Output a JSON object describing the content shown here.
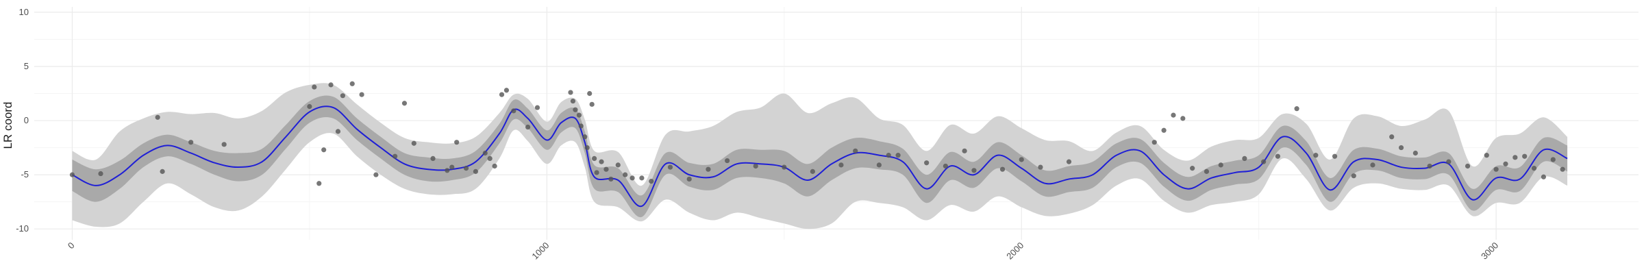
{
  "chart_data": {
    "type": "scatter",
    "title": "",
    "xlabel": "",
    "ylabel": "LR coord",
    "xlim": [
      -80,
      3300
    ],
    "ylim": [
      -11,
      10.5
    ],
    "x_ticks": [
      0,
      1000,
      2000,
      3000
    ],
    "x_tick_labels": [
      "0",
      "1000",
      "2000",
      "3000"
    ],
    "y_ticks": [
      -10,
      -5,
      0,
      5,
      10
    ],
    "y_tick_labels": [
      "-10",
      "-5",
      "0",
      "5",
      "10"
    ],
    "grid": true,
    "legend": "none",
    "colors": {
      "fit_line": "#1f1fd6",
      "inner_band": "#a9a9a9",
      "outer_band": "#d3d3d3",
      "points": "#555555",
      "grid_major": "#ebebeb",
      "grid_minor": "#f5f5f5"
    },
    "series": [
      {
        "kind": "fit",
        "x": [
          0,
          50,
          100,
          150,
          200,
          250,
          300,
          350,
          400,
          450,
          500,
          550,
          600,
          650,
          700,
          750,
          800,
          850,
          900,
          930,
          960,
          1000,
          1030,
          1060,
          1080,
          1100,
          1150,
          1200,
          1250,
          1300,
          1350,
          1400,
          1450,
          1500,
          1550,
          1600,
          1650,
          1700,
          1750,
          1800,
          1850,
          1900,
          1950,
          2000,
          2050,
          2100,
          2150,
          2200,
          2250,
          2300,
          2350,
          2400,
          2450,
          2500,
          2550,
          2600,
          2650,
          2700,
          2750,
          2800,
          2850,
          2900,
          2950,
          3000,
          3050,
          3100,
          3150
        ],
        "y": [
          -5.0,
          -6.0,
          -5.0,
          -3.2,
          -2.3,
          -3.0,
          -3.9,
          -4.3,
          -3.8,
          -1.5,
          0.8,
          1.2,
          -0.8,
          -2.5,
          -4.0,
          -4.5,
          -4.5,
          -3.8,
          -1.2,
          1.0,
          0.2,
          -1.8,
          -0.2,
          0.2,
          -2.0,
          -5.2,
          -5.5,
          -7.9,
          -4.0,
          -5.0,
          -5.2,
          -4.0,
          -4.0,
          -4.3,
          -5.5,
          -4.0,
          -3.0,
          -3.2,
          -3.8,
          -6.3,
          -4.2,
          -5.0,
          -3.2,
          -4.4,
          -5.8,
          -5.4,
          -5.0,
          -3.2,
          -2.8,
          -5.0,
          -6.3,
          -5.3,
          -4.8,
          -4.3,
          -1.5,
          -3.0,
          -6.4,
          -3.8,
          -3.6,
          -4.3,
          -4.4,
          -4.0,
          -7.3,
          -5.3,
          -5.4,
          -2.7,
          -3.5
        ]
      },
      {
        "kind": "inner_band",
        "x": [
          0,
          50,
          100,
          150,
          200,
          250,
          300,
          350,
          400,
          450,
          500,
          550,
          600,
          650,
          700,
          750,
          800,
          850,
          900,
          930,
          960,
          1000,
          1030,
          1060,
          1080,
          1100,
          1150,
          1200,
          1250,
          1300,
          1350,
          1400,
          1450,
          1500,
          1550,
          1600,
          1650,
          1700,
          1750,
          1800,
          1850,
          1900,
          1950,
          2000,
          2050,
          2100,
          2150,
          2200,
          2250,
          2300,
          2350,
          2400,
          2450,
          2500,
          2550,
          2600,
          2650,
          2700,
          2750,
          2800,
          2850,
          2900,
          2950,
          3000,
          3050,
          3100,
          3150
        ],
        "lower": [
          -6.5,
          -7.5,
          -6.3,
          -4.3,
          -3.3,
          -4.0,
          -5.0,
          -5.6,
          -5.0,
          -2.6,
          -0.2,
          0.2,
          -1.8,
          -3.5,
          -5.0,
          -5.6,
          -5.5,
          -4.8,
          -2.1,
          0.1,
          -0.7,
          -2.7,
          -1.1,
          -0.7,
          -3.0,
          -6.3,
          -6.6,
          -8.9,
          -5.0,
          -6.1,
          -6.4,
          -5.3,
          -5.3,
          -5.8,
          -7.0,
          -5.5,
          -4.4,
          -4.5,
          -5.0,
          -7.6,
          -5.5,
          -6.2,
          -4.4,
          -5.6,
          -7.0,
          -6.6,
          -6.2,
          -4.3,
          -3.9,
          -6.1,
          -7.4,
          -6.4,
          -5.9,
          -5.4,
          -2.5,
          -4.1,
          -7.5,
          -4.9,
          -4.6,
          -5.3,
          -5.4,
          -5.0,
          -8.3,
          -6.4,
          -6.5,
          -3.8,
          -4.7
        ],
        "upper": [
          -3.6,
          -4.5,
          -3.7,
          -2.1,
          -1.3,
          -2.0,
          -2.8,
          -3.0,
          -2.6,
          -0.4,
          1.8,
          2.2,
          0.2,
          -1.5,
          -3.0,
          -3.4,
          -3.5,
          -2.8,
          -0.3,
          1.9,
          1.1,
          -0.9,
          0.7,
          1.1,
          -1.0,
          -4.1,
          -4.4,
          -6.9,
          -3.0,
          -3.9,
          -4.0,
          -2.7,
          -2.7,
          -2.8,
          -4.0,
          -2.5,
          -1.6,
          -1.9,
          -2.6,
          -5.0,
          -2.9,
          -3.8,
          -2.0,
          -3.2,
          -4.6,
          -4.2,
          -3.8,
          -2.1,
          -1.7,
          -3.9,
          -5.2,
          -4.2,
          -3.7,
          -3.2,
          -0.5,
          -1.9,
          -5.3,
          -2.7,
          -2.6,
          -3.3,
          -3.4,
          -3.0,
          -6.3,
          -4.2,
          -4.3,
          -1.6,
          -2.3
        ]
      },
      {
        "kind": "outer_band",
        "x": [
          0,
          50,
          100,
          150,
          200,
          250,
          300,
          350,
          400,
          450,
          500,
          550,
          600,
          650,
          700,
          750,
          800,
          850,
          900,
          930,
          960,
          1000,
          1030,
          1060,
          1080,
          1100,
          1150,
          1200,
          1250,
          1300,
          1350,
          1400,
          1450,
          1500,
          1550,
          1600,
          1650,
          1700,
          1750,
          1800,
          1850,
          1900,
          1950,
          2000,
          2050,
          2100,
          2150,
          2200,
          2250,
          2300,
          2350,
          2400,
          2450,
          2500,
          2550,
          2600,
          2650,
          2700,
          2750,
          2800,
          2850,
          2900,
          2950,
          3000,
          3050,
          3100,
          3150
        ],
        "lower": [
          -9.2,
          -9.8,
          -9.5,
          -7.5,
          -5.8,
          -6.8,
          -8.0,
          -8.3,
          -7.0,
          -4.5,
          -2.0,
          -1.2,
          -3.3,
          -5.0,
          -6.3,
          -6.8,
          -6.8,
          -6.3,
          -3.5,
          -0.9,
          -1.9,
          -4.0,
          -2.3,
          -2.0,
          -4.3,
          -7.5,
          -8.0,
          -9.3,
          -7.3,
          -8.5,
          -9.2,
          -8.5,
          -9.0,
          -9.5,
          -10.0,
          -9.5,
          -7.5,
          -7.6,
          -8.0,
          -9.2,
          -7.8,
          -8.4,
          -7.0,
          -8.0,
          -8.8,
          -8.6,
          -7.8,
          -6.0,
          -5.4,
          -7.4,
          -8.5,
          -7.8,
          -7.5,
          -6.8,
          -3.5,
          -5.4,
          -8.3,
          -6.2,
          -5.8,
          -6.3,
          -6.4,
          -6.0,
          -8.8,
          -7.6,
          -7.6,
          -5.2,
          -6.0
        ],
        "upper": [
          -2.8,
          -3.6,
          -1.0,
          0.2,
          0.8,
          0.6,
          0.7,
          0.2,
          0.9,
          2.6,
          3.3,
          3.3,
          1.5,
          -0.2,
          -1.6,
          -2.0,
          -2.1,
          -1.5,
          0.7,
          2.4,
          2.0,
          -0.1,
          1.7,
          2.0,
          0.1,
          -2.8,
          -2.9,
          -6.0,
          -1.3,
          -1.0,
          -0.5,
          0.8,
          1.2,
          2.5,
          0.7,
          1.6,
          2.1,
          0.2,
          -0.4,
          -2.8,
          -0.4,
          -1.2,
          0.4,
          -0.7,
          -1.8,
          -1.9,
          -2.8,
          -1.1,
          -0.5,
          -2.7,
          -3.7,
          -2.4,
          -1.8,
          -1.6,
          0.6,
          -0.3,
          -3.6,
          0.2,
          0.4,
          -0.5,
          0.1,
          0.9,
          -4.2,
          -1.6,
          -1.2,
          0.3,
          -1.5
        ]
      },
      {
        "kind": "points",
        "x": [
          0,
          60,
          180,
          190,
          250,
          320,
          500,
          510,
          520,
          530,
          545,
          560,
          570,
          590,
          610,
          640,
          680,
          700,
          720,
          760,
          790,
          800,
          810,
          830,
          850,
          870,
          880,
          890,
          905,
          915,
          930,
          960,
          980,
          1050,
          1055,
          1060,
          1068,
          1072,
          1080,
          1085,
          1090,
          1095,
          1100,
          1105,
          1115,
          1125,
          1135,
          1150,
          1165,
          1180,
          1200,
          1220,
          1260,
          1300,
          1340,
          1380,
          1440,
          1500,
          1560,
          1620,
          1650,
          1700,
          1720,
          1740,
          1800,
          1840,
          1880,
          1900,
          1960,
          2000,
          2040,
          2100,
          2280,
          2300,
          2320,
          2340,
          2360,
          2390,
          2420,
          2470,
          2510,
          2540,
          2580,
          2620,
          2660,
          2700,
          2740,
          2780,
          2800,
          2830,
          2860,
          2900,
          2940,
          2980,
          3000,
          3020,
          3040,
          3060,
          3080,
          3100,
          3120,
          3140
        ],
        "y": [
          -5.0,
          -4.9,
          0.3,
          -4.7,
          -2.0,
          -2.2,
          1.3,
          3.1,
          -5.8,
          -2.7,
          3.3,
          -1.0,
          2.3,
          3.4,
          2.4,
          -5.0,
          -3.3,
          1.6,
          -2.1,
          -3.5,
          -4.6,
          -4.3,
          -2.0,
          -4.4,
          -4.7,
          -3.0,
          -3.5,
          -4.2,
          2.4,
          2.8,
          0.9,
          -0.6,
          1.2,
          2.6,
          1.8,
          1.0,
          0.5,
          -0.5,
          -1.5,
          -2.5,
          2.5,
          1.5,
          -3.5,
          -4.8,
          -3.8,
          -4.5,
          -5.4,
          -4.1,
          -5.0,
          -5.3,
          -5.3,
          -5.6,
          -4.3,
          -5.4,
          -4.5,
          -3.7,
          -4.2,
          -4.3,
          -4.7,
          -4.1,
          -2.8,
          -4.1,
          -3.2,
          -3.2,
          -3.9,
          -4.2,
          -2.8,
          -4.6,
          -4.5,
          -3.6,
          -4.3,
          -3.8,
          -2.0,
          -0.9,
          0.5,
          0.2,
          -4.4,
          -4.7,
          -4.1,
          -3.5,
          -3.8,
          -3.3,
          1.1,
          -3.2,
          -3.3,
          -5.1,
          -4.1,
          -1.5,
          -2.5,
          -3.0,
          -4.2,
          -3.8,
          -4.2,
          -3.2,
          -4.5,
          -4.0,
          -3.4,
          -3.3,
          -4.4,
          -5.2,
          -3.6,
          -4.5
        ]
      }
    ]
  }
}
